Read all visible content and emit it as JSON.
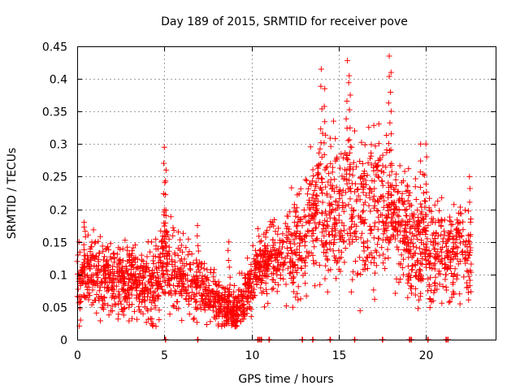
{
  "chart_data": {
    "type": "scatter",
    "title": "Day 189 of 2015, SRMTID for receiver pove",
    "xlabel": "GPS time / hours",
    "ylabel": "SRMTID / TECUs",
    "xlim": [
      0,
      24
    ],
    "ylim": [
      0,
      0.45
    ],
    "x_ticks": [
      0,
      5,
      10,
      15,
      20
    ],
    "x_tick_labels": [
      "0",
      "5",
      "10",
      "15",
      "20"
    ],
    "y_ticks": [
      0,
      0.05,
      0.1,
      0.15,
      0.2,
      0.25,
      0.3,
      0.35,
      0.4,
      0.45
    ],
    "y_tick_labels": [
      "0",
      "0.05",
      "0.1",
      "0.15",
      "0.2",
      "0.25",
      "0.3",
      "0.35",
      "0.4",
      "0.45"
    ],
    "grid": true,
    "marker": "plus",
    "color": "#ff0000",
    "trend": [
      [
        0,
        0.075
      ],
      [
        0.4,
        0.11
      ],
      [
        1,
        0.105
      ],
      [
        1.5,
        0.09
      ],
      [
        2,
        0.095
      ],
      [
        2.5,
        0.09
      ],
      [
        3,
        0.1
      ],
      [
        3.5,
        0.09
      ],
      [
        4,
        0.09
      ],
      [
        4.5,
        0.08
      ],
      [
        5,
        0.13
      ],
      [
        5.5,
        0.11
      ],
      [
        6,
        0.1
      ],
      [
        6.5,
        0.09
      ],
      [
        7,
        0.08
      ],
      [
        7.5,
        0.07
      ],
      [
        8,
        0.055
      ],
      [
        8.5,
        0.05
      ],
      [
        9,
        0.045
      ],
      [
        9.3,
        0.05
      ],
      [
        9.8,
        0.08
      ],
      [
        10.3,
        0.11
      ],
      [
        11,
        0.12
      ],
      [
        11.5,
        0.13
      ],
      [
        12,
        0.13
      ],
      [
        12.5,
        0.14
      ],
      [
        13,
        0.16
      ],
      [
        13.5,
        0.18
      ],
      [
        14,
        0.21
      ],
      [
        14.5,
        0.21
      ],
      [
        15,
        0.2
      ],
      [
        15.5,
        0.22
      ],
      [
        16,
        0.2
      ],
      [
        16.5,
        0.19
      ],
      [
        17,
        0.2
      ],
      [
        17.5,
        0.2
      ],
      [
        18,
        0.2
      ],
      [
        18.5,
        0.18
      ],
      [
        19,
        0.15
      ],
      [
        19.5,
        0.14
      ],
      [
        20,
        0.15
      ],
      [
        20.5,
        0.13
      ],
      [
        21,
        0.12
      ],
      [
        21.5,
        0.13
      ],
      [
        22,
        0.15
      ],
      [
        22.6,
        0.12
      ]
    ],
    "spread": [
      [
        0,
        0.04
      ],
      [
        5,
        0.05
      ],
      [
        8,
        0.03
      ],
      [
        9.5,
        0.03
      ],
      [
        12,
        0.05
      ],
      [
        14,
        0.08
      ],
      [
        17,
        0.09
      ],
      [
        19,
        0.07
      ],
      [
        22.6,
        0.05
      ]
    ],
    "peaks": [
      {
        "x": 0.4,
        "y": 0.18
      },
      {
        "x": 5.0,
        "y": 0.295
      },
      {
        "x": 5.1,
        "y": 0.26
      },
      {
        "x": 6.9,
        "y": 0.175
      },
      {
        "x": 8.7,
        "y": 0.15
      },
      {
        "x": 14.0,
        "y": 0.415
      },
      {
        "x": 14.2,
        "y": 0.385
      },
      {
        "x": 15.5,
        "y": 0.428
      },
      {
        "x": 15.6,
        "y": 0.405
      },
      {
        "x": 17.9,
        "y": 0.435
      },
      {
        "x": 18.0,
        "y": 0.41
      },
      {
        "x": 18.9,
        "y": 0.2
      },
      {
        "x": 19.7,
        "y": 0.3
      },
      {
        "x": 20.0,
        "y": 0.3
      },
      {
        "x": 22.5,
        "y": 0.25
      }
    ],
    "zero_points": [
      5.05,
      6.9,
      10.35,
      10.45,
      10.55,
      11.0,
      12.9,
      13.5,
      14.5,
      15.9,
      17.5,
      19.05,
      19.15,
      20.1,
      21.15,
      21.25
    ],
    "points_per_hour": 110,
    "time_range": [
      0,
      22.6
    ]
  }
}
